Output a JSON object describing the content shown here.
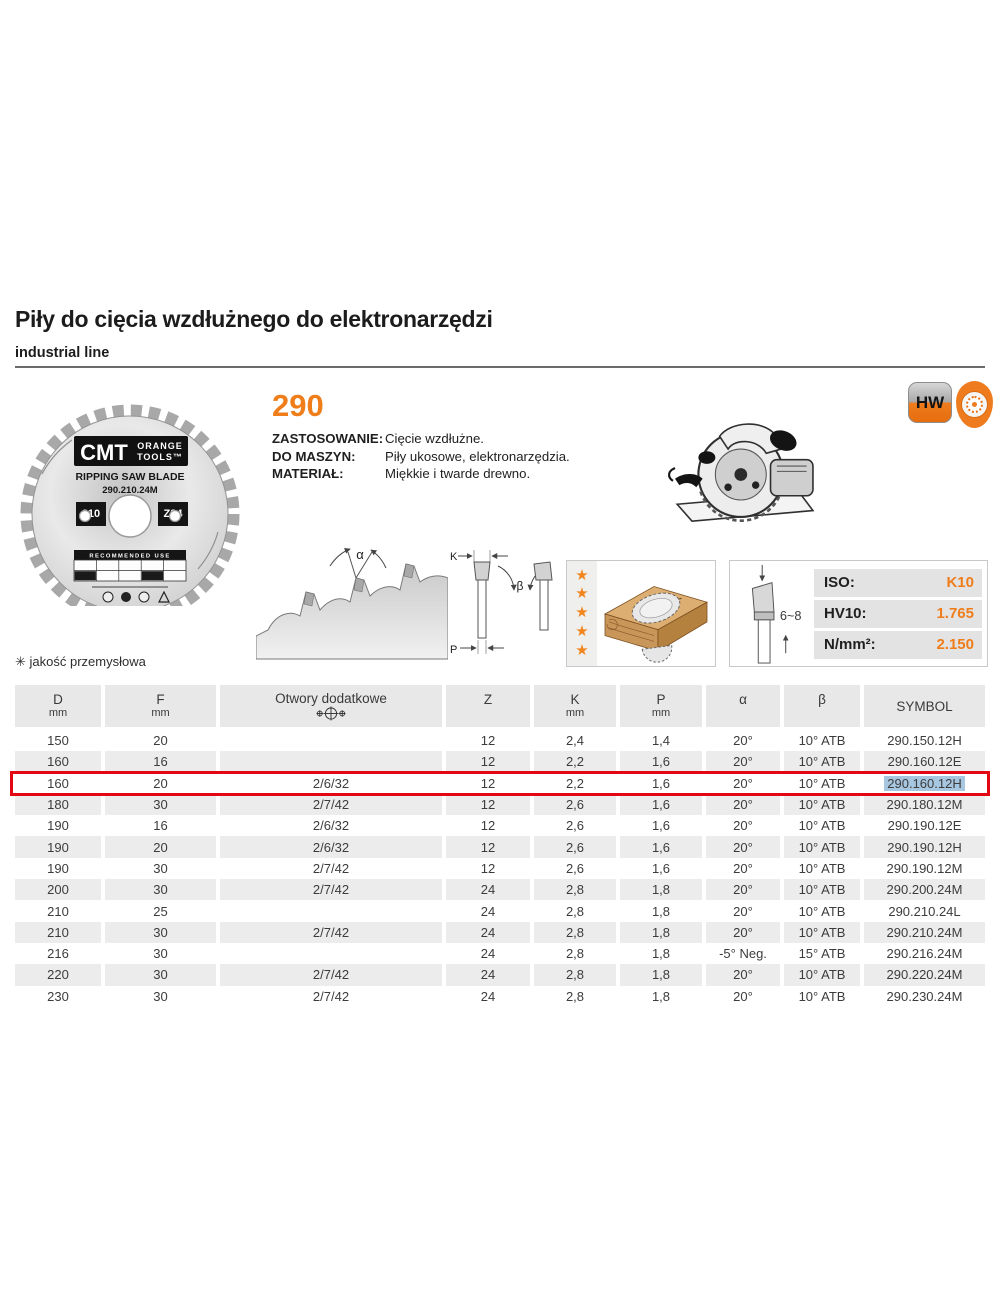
{
  "page": {
    "title": "Piły do cięcia wzdłużnego do elektronarzędzi",
    "subtitle": "industrial line",
    "series_number": "290",
    "quality_note": "✳ jakość przemysłowa"
  },
  "specs": [
    {
      "label": "ZASTOSOWANIE:",
      "value": "Cięcie wzdłużne."
    },
    {
      "label": "DO MASZYN:",
      "value": "Piły ukosowe, elektronarzędzia."
    },
    {
      "label": "MATERIAŁ:",
      "value": "Miękkie i twarde drewno."
    }
  ],
  "badges": {
    "hw": "HW"
  },
  "blade_label": {
    "brand": "CMT",
    "brand_line1": "ORANGE",
    "brand_line2": "TOOLS™",
    "type": "RIPPING SAW BLADE",
    "code": "290.210.24M",
    "left_badge": "210",
    "right_badge": "Z24",
    "recommended": "RECOMMENDED USE"
  },
  "properties": [
    {
      "label": "ISO:",
      "value": "K10"
    },
    {
      "label": "HV10:",
      "value": "1.765"
    },
    {
      "label": "N/mm²:",
      "value": "2.150"
    }
  ],
  "diagram_labels": {
    "alpha": "α",
    "k": "K",
    "p": "P",
    "beta": "β",
    "tooth_height": "6~8"
  },
  "rating": {
    "stars": 5,
    "star_char": "★"
  },
  "table": {
    "keys": [
      "d",
      "f",
      "otwory",
      "z",
      "k",
      "p",
      "alpha",
      "beta",
      "symbol"
    ],
    "headers": [
      {
        "label": "D",
        "sub": "mm"
      },
      {
        "label": "F",
        "sub": "mm"
      },
      {
        "label": "Otwory dodatkowe",
        "sub": ""
      },
      {
        "label": "Z",
        "sub": ""
      },
      {
        "label": "K",
        "sub": "mm"
      },
      {
        "label": "P",
        "sub": "mm"
      },
      {
        "label": "α",
        "sub": ""
      },
      {
        "label": "β",
        "sub": ""
      },
      {
        "label": "SYMBOL",
        "sub": ""
      }
    ],
    "rows": [
      {
        "d": "150",
        "f": "20",
        "otwory": "",
        "z": "12",
        "k": "2,4",
        "p": "1,4",
        "alpha": "20°",
        "beta": "10° ATB",
        "symbol": "290.150.12H",
        "highlight": false,
        "selected": false
      },
      {
        "d": "160",
        "f": "16",
        "otwory": "",
        "z": "12",
        "k": "2,2",
        "p": "1,6",
        "alpha": "20°",
        "beta": "10° ATB",
        "symbol": "290.160.12E",
        "highlight": false,
        "selected": false
      },
      {
        "d": "160",
        "f": "20",
        "otwory": "2/6/32",
        "z": "12",
        "k": "2,2",
        "p": "1,6",
        "alpha": "20°",
        "beta": "10° ATB",
        "symbol": "290.160.12H",
        "highlight": true,
        "selected": true
      },
      {
        "d": "180",
        "f": "30",
        "otwory": "2/7/42",
        "z": "12",
        "k": "2,6",
        "p": "1,6",
        "alpha": "20°",
        "beta": "10° ATB",
        "symbol": "290.180.12M",
        "highlight": false,
        "selected": false
      },
      {
        "d": "190",
        "f": "16",
        "otwory": "2/6/32",
        "z": "12",
        "k": "2,6",
        "p": "1,6",
        "alpha": "20°",
        "beta": "10° ATB",
        "symbol": "290.190.12E",
        "highlight": false,
        "selected": false
      },
      {
        "d": "190",
        "f": "20",
        "otwory": "2/6/32",
        "z": "12",
        "k": "2,6",
        "p": "1,6",
        "alpha": "20°",
        "beta": "10° ATB",
        "symbol": "290.190.12H",
        "highlight": false,
        "selected": false
      },
      {
        "d": "190",
        "f": "30",
        "otwory": "2/7/42",
        "z": "12",
        "k": "2,6",
        "p": "1,6",
        "alpha": "20°",
        "beta": "10° ATB",
        "symbol": "290.190.12M",
        "highlight": false,
        "selected": false
      },
      {
        "d": "200",
        "f": "30",
        "otwory": "2/7/42",
        "z": "24",
        "k": "2,8",
        "p": "1,8",
        "alpha": "20°",
        "beta": "10° ATB",
        "symbol": "290.200.24M",
        "highlight": false,
        "selected": false
      },
      {
        "d": "210",
        "f": "25",
        "otwory": "",
        "z": "24",
        "k": "2,8",
        "p": "1,8",
        "alpha": "20°",
        "beta": "10° ATB",
        "symbol": "290.210.24L",
        "highlight": false,
        "selected": false
      },
      {
        "d": "210",
        "f": "30",
        "otwory": "2/7/42",
        "z": "24",
        "k": "2,8",
        "p": "1,8",
        "alpha": "20°",
        "beta": "10° ATB",
        "symbol": "290.210.24M",
        "highlight": false,
        "selected": false
      },
      {
        "d": "216",
        "f": "30",
        "otwory": "",
        "z": "24",
        "k": "2,8",
        "p": "1,8",
        "alpha": "-5° Neg.",
        "beta": "15° ATB",
        "symbol": "290.216.24M",
        "highlight": false,
        "selected": false
      },
      {
        "d": "220",
        "f": "30",
        "otwory": "2/7/42",
        "z": "24",
        "k": "2,8",
        "p": "1,8",
        "alpha": "20°",
        "beta": "10° ATB",
        "symbol": "290.220.24M",
        "highlight": false,
        "selected": false
      },
      {
        "d": "230",
        "f": "30",
        "otwory": "2/7/42",
        "z": "24",
        "k": "2,8",
        "p": "1,8",
        "alpha": "20°",
        "beta": "10° ATB",
        "symbol": "290.230.24M",
        "highlight": false,
        "selected": false
      }
    ]
  },
  "colors": {
    "accent_orange": "#EF7D1A",
    "highlight_red": "#E30613",
    "selection_blue": "#A7C6DF",
    "star_orange": "#F1861F",
    "table_gray": "#ECECEC"
  }
}
